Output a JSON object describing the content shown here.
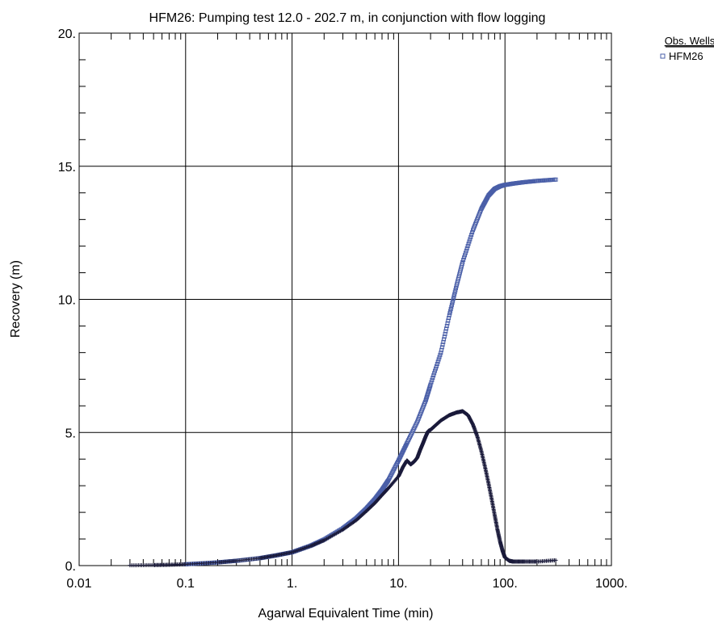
{
  "chart_data": {
    "type": "scatter",
    "title": "HFM26: Pumping test 12.0 - 202.7 m, in conjunction with flow logging",
    "xlabel": "Agarwal Equivalent Time (min)",
    "ylabel": "Recovery (m)",
    "x_scale": "log",
    "xlim": [
      0.01,
      1000
    ],
    "ylim": [
      0,
      20
    ],
    "x_ticks": [
      0.01,
      0.1,
      1,
      10,
      100,
      1000
    ],
    "x_tick_labels": [
      "0.01",
      "0.1",
      "1.",
      "10.",
      "100.",
      "1000."
    ],
    "y_ticks": [
      0,
      5,
      10,
      15,
      20
    ],
    "y_tick_labels": [
      "0.",
      "5.",
      "10.",
      "15.",
      "20."
    ],
    "grid": true,
    "legend": {
      "title": "Obs. Wells",
      "position": "top-right",
      "entries": [
        "HFM26"
      ]
    },
    "series": [
      {
        "name": "HFM26",
        "marker": "square",
        "color": "#4a5fa8",
        "x": [
          0.1,
          0.2,
          0.3,
          0.5,
          0.7,
          1,
          1.5,
          2,
          3,
          4,
          5,
          6,
          7,
          8,
          10,
          12,
          15,
          18,
          20,
          25,
          30,
          35,
          40,
          50,
          60,
          70,
          80,
          90,
          100,
          120,
          150,
          200,
          300
        ],
        "y": [
          0.05,
          0.12,
          0.18,
          0.28,
          0.38,
          0.5,
          0.75,
          0.98,
          1.4,
          1.78,
          2.15,
          2.5,
          2.85,
          3.2,
          3.95,
          4.6,
          5.4,
          6.2,
          6.8,
          8.0,
          9.4,
          10.5,
          11.4,
          12.6,
          13.4,
          13.9,
          14.15,
          14.25,
          14.3,
          14.35,
          14.4,
          14.45,
          14.5
        ]
      },
      {
        "marker": "plus",
        "color": "#1a1a3a",
        "x": [
          0.03,
          0.05,
          0.07,
          0.1,
          0.2,
          0.3,
          0.5,
          0.7,
          1,
          1.5,
          2,
          3,
          4,
          5,
          6,
          7,
          8,
          10,
          11,
          12,
          13,
          14,
          15,
          16,
          17,
          18,
          19,
          20,
          22,
          25,
          30,
          35,
          40,
          45,
          50,
          55,
          60,
          65,
          70,
          75,
          80,
          85,
          90,
          95,
          100,
          110,
          120,
          150,
          200,
          300
        ],
        "y": [
          0.01,
          0.02,
          0.03,
          0.05,
          0.12,
          0.18,
          0.28,
          0.38,
          0.5,
          0.74,
          0.95,
          1.35,
          1.7,
          2.05,
          2.35,
          2.65,
          2.9,
          3.35,
          3.7,
          3.95,
          3.8,
          3.9,
          4.05,
          4.35,
          4.6,
          4.85,
          5.05,
          5.1,
          5.25,
          5.45,
          5.65,
          5.75,
          5.8,
          5.65,
          5.3,
          4.85,
          4.3,
          3.7,
          3.1,
          2.5,
          1.9,
          1.35,
          0.9,
          0.55,
          0.3,
          0.18,
          0.15,
          0.15,
          0.15,
          0.2
        ]
      }
    ]
  }
}
